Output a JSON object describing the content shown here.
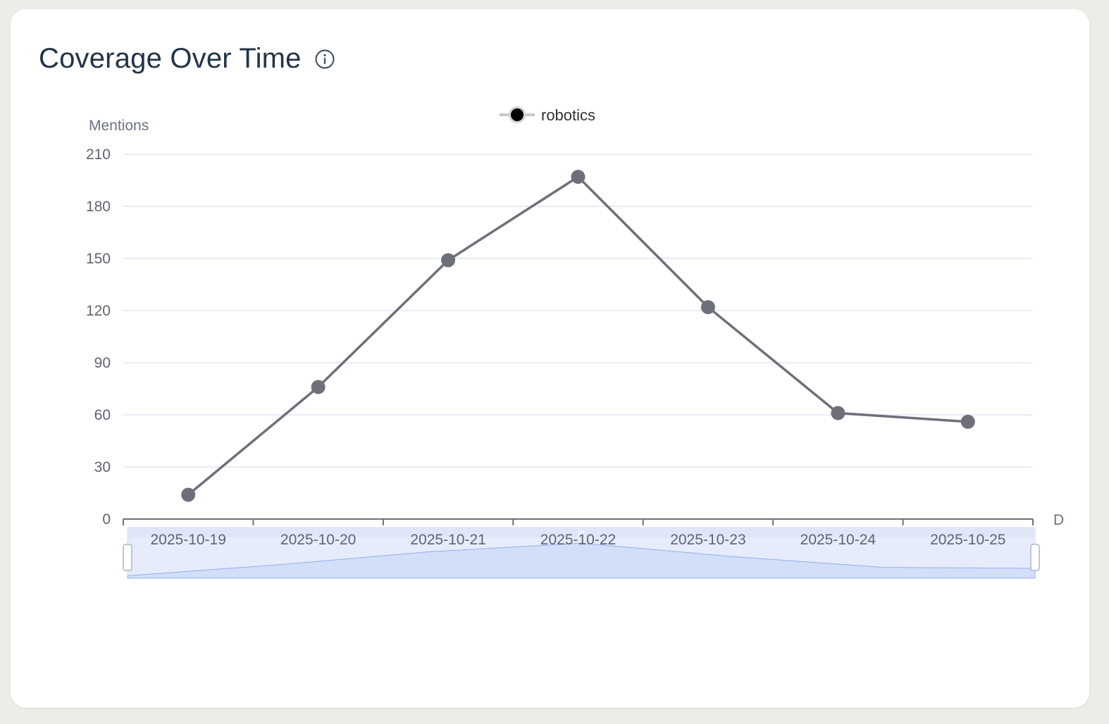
{
  "card": {
    "title": "Coverage Over Time"
  },
  "icons": {
    "info": "info-icon"
  },
  "colors": {
    "line": "#6e7079",
    "grid": "#e0e6f1",
    "axis": "#6e7079",
    "zoom_fill": "rgba(210,219,238,0.5)",
    "zoom_area": "#c6d6f7"
  },
  "chart_data": {
    "type": "line",
    "title": "",
    "ylabel": "Mentions",
    "xlabel": "D",
    "x": [
      "2025-10-19",
      "2025-10-20",
      "2025-10-21",
      "2025-10-22",
      "2025-10-23",
      "2025-10-24",
      "2025-10-25"
    ],
    "series": [
      {
        "name": "robotics",
        "values": [
          14,
          76,
          149,
          197,
          122,
          61,
          56
        ]
      }
    ],
    "ylim": [
      0,
      210
    ],
    "yticks": [
      0,
      30,
      60,
      90,
      120,
      150,
      180,
      210
    ],
    "grid": true,
    "legend": "top-center",
    "datazoom": {
      "start": 0,
      "end": 100
    }
  }
}
